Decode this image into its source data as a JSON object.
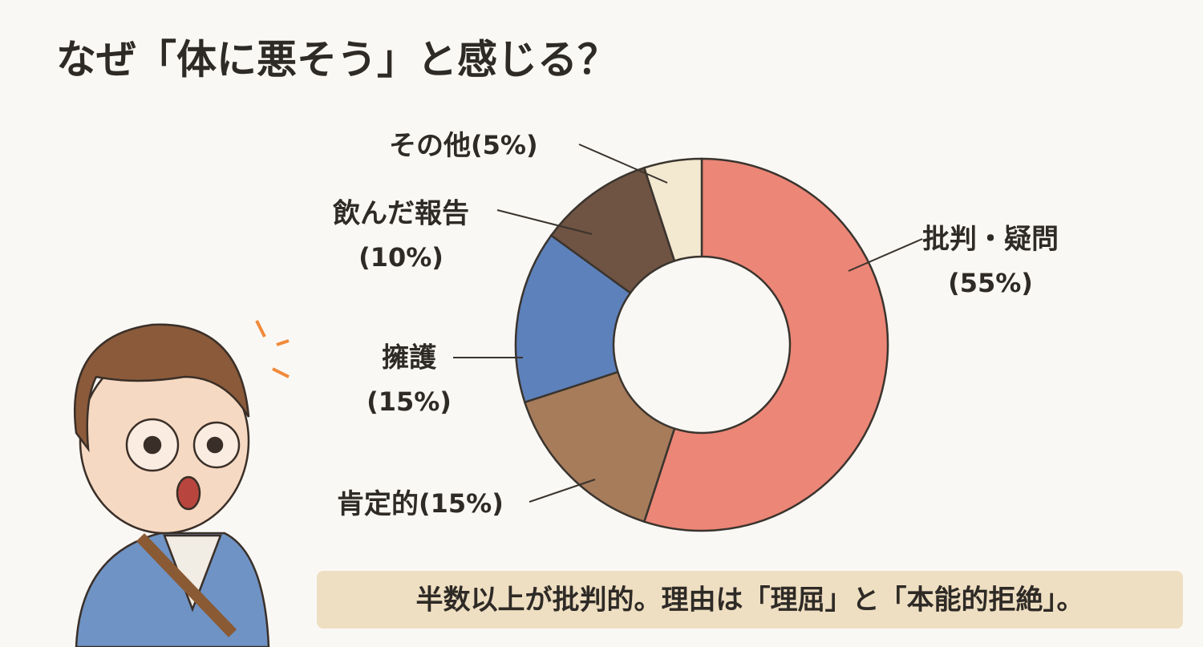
{
  "chart_data": {
    "type": "donut",
    "title": "なぜ「体に悪そう」と感じる？",
    "categories": [
      "批判・疑問",
      "肯定的",
      "擁護",
      "飲んだ報告",
      "その他"
    ],
    "values": [
      55,
      15,
      15,
      10,
      5
    ],
    "value_labels": [
      "(55%)",
      "(15%)",
      "(15%)",
      "(10%)",
      "(5%)"
    ],
    "colors": [
      "#ec8677",
      "#a77c5b",
      "#5d81bb",
      "#6f5343",
      "#f3e8d0"
    ],
    "caption": "半数以上が批判的。理由は「理屈」と「本能的拒絶」。"
  }
}
